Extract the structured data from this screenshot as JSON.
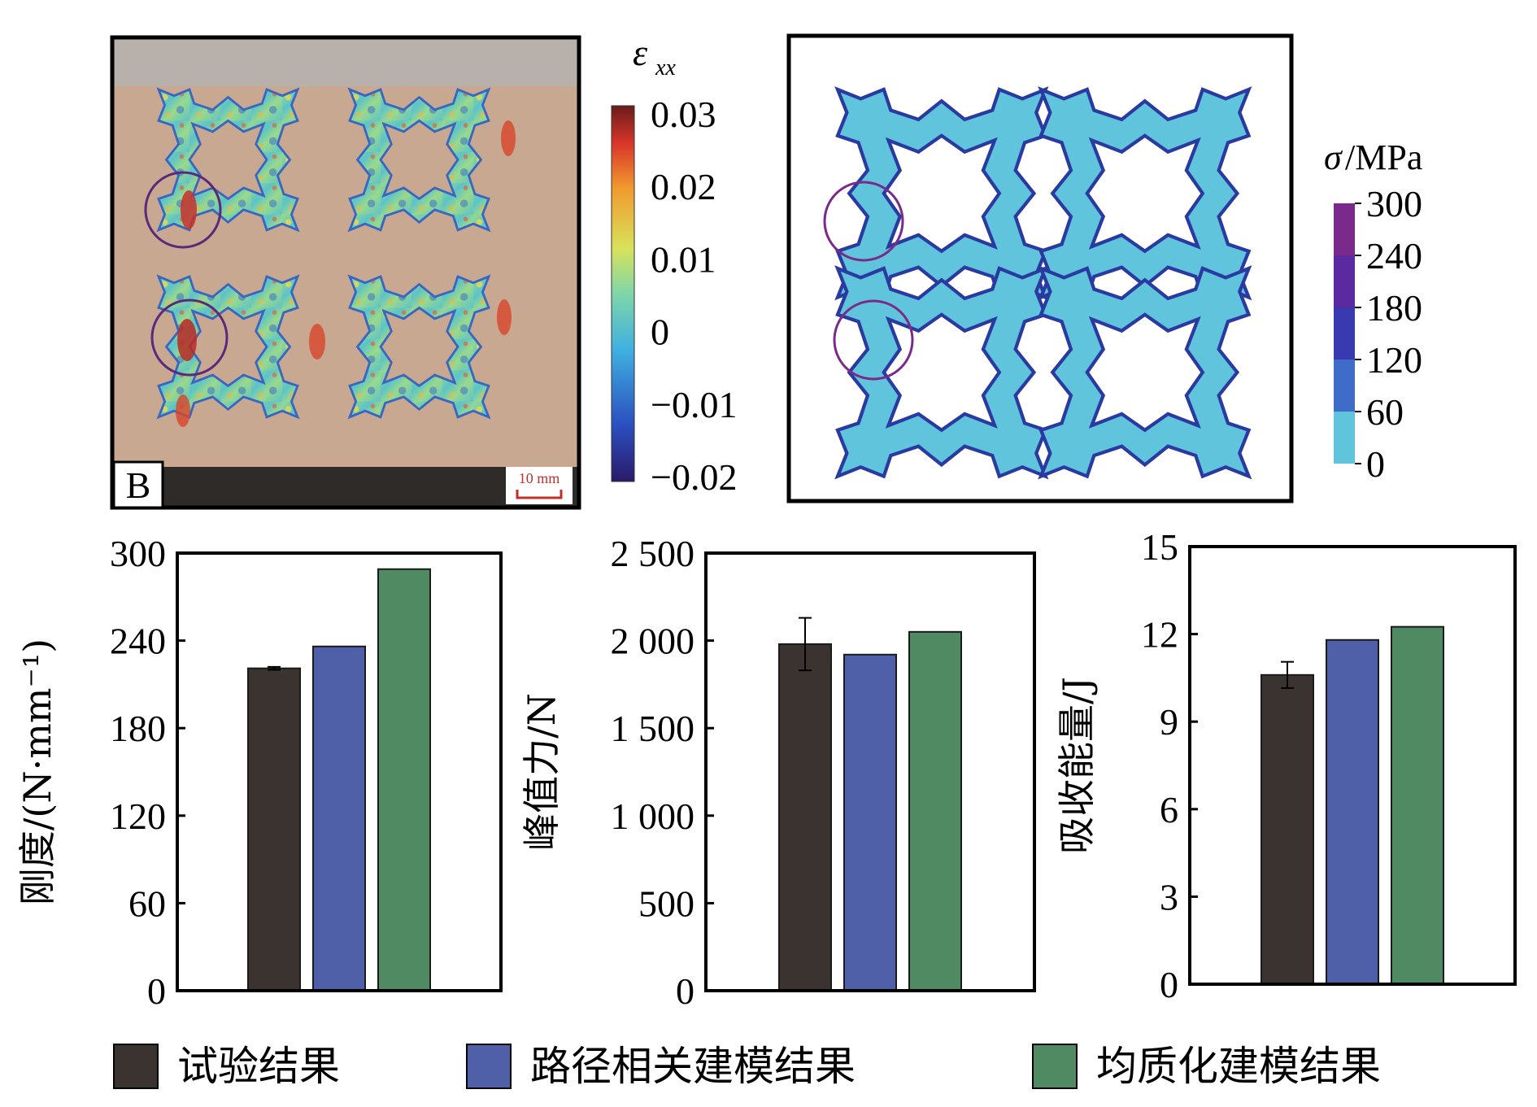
{
  "colors": {
    "experiment": "#3a3330",
    "path_model": "#5060a8",
    "homog_model": "#4f8a62",
    "strain_photo_bg": "#c9a892",
    "stress_fill": "#5fc4dc",
    "circle": "#5a2a7a"
  },
  "photo_panel": {
    "label": "B",
    "scale_bar": "10 mm"
  },
  "strain_colorbar": {
    "symbol": "ε",
    "subscript": "xx",
    "ticks": [
      "0.03",
      "0.02",
      "0.01",
      "0",
      "−0.01",
      "−0.02"
    ]
  },
  "stress_colorbar": {
    "symbol": "σ",
    "unit": "/MPa",
    "ticks": [
      "300",
      "240",
      "180",
      "120",
      "60",
      "0"
    ]
  },
  "legend": [
    {
      "label": "试验结果",
      "color_key": "experiment"
    },
    {
      "label": "路径相关建模结果",
      "color_key": "path_model"
    },
    {
      "label": "均质化建模结果",
      "color_key": "homog_model"
    }
  ],
  "chart_data": [
    {
      "type": "bar",
      "categories": [
        "试验结果",
        "路径相关建模结果",
        "均质化建模结果"
      ],
      "values": [
        221,
        236,
        289
      ],
      "error": [
        1,
        0,
        0
      ],
      "ylim": [
        0,
        300
      ],
      "yticks": [
        "0",
        "60",
        "120",
        "180",
        "240",
        "300"
      ],
      "ylabel": "刚度/(N·mm⁻¹)",
      "xlabel": "",
      "title": ""
    },
    {
      "type": "bar",
      "categories": [
        "试验结果",
        "路径相关建模结果",
        "均质化建模结果"
      ],
      "values": [
        1980,
        1920,
        2050
      ],
      "error": [
        150,
        0,
        0
      ],
      "ylim": [
        0,
        2500
      ],
      "yticks": [
        "0",
        "500",
        "1 000",
        "1 500",
        "2 000",
        "2 500"
      ],
      "ylabel": "峰值力/N",
      "xlabel": "",
      "title": ""
    },
    {
      "type": "bar",
      "categories": [
        "试验结果",
        "路径相关建模结果",
        "均质化建模结果"
      ],
      "values": [
        10.6,
        11.8,
        12.25
      ],
      "error": [
        0.45,
        0,
        0
      ],
      "ylim": [
        0,
        15
      ],
      "yticks": [
        "0",
        "3",
        "6",
        "9",
        "12",
        "15"
      ],
      "ylabel": "吸收能量/J",
      "xlabel": "",
      "title": ""
    }
  ]
}
